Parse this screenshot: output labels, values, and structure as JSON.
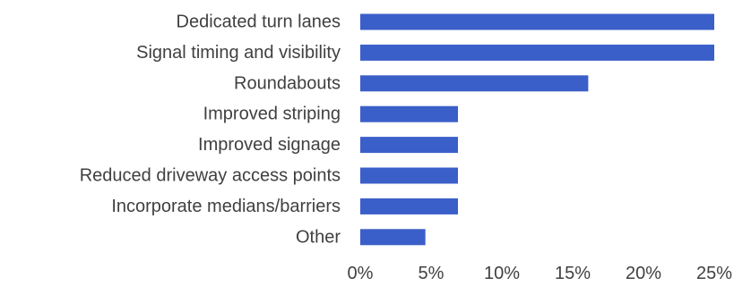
{
  "chart_data": {
    "type": "bar",
    "orientation": "horizontal",
    "title": "",
    "xlabel": "",
    "ylabel": "",
    "categories": [
      "Dedicated turn lanes",
      "Signal timing and visibility",
      "Roundabouts",
      "Improved striping",
      "Improved signage",
      "Reduced driveway access points",
      "Incorporate medians/barriers",
      "Other"
    ],
    "values": [
      25,
      25,
      16.1,
      6.9,
      6.9,
      6.9,
      6.9,
      4.6
    ],
    "value_unit": "%",
    "xlim": [
      0,
      25
    ],
    "x_ticks": [
      0,
      5,
      10,
      15,
      20,
      25
    ],
    "x_tick_labels": [
      "0%",
      "5%",
      "10%",
      "15%",
      "20%",
      "25%"
    ],
    "bar_color": "#3b5fc9",
    "gridlines": false,
    "legend": "none"
  }
}
